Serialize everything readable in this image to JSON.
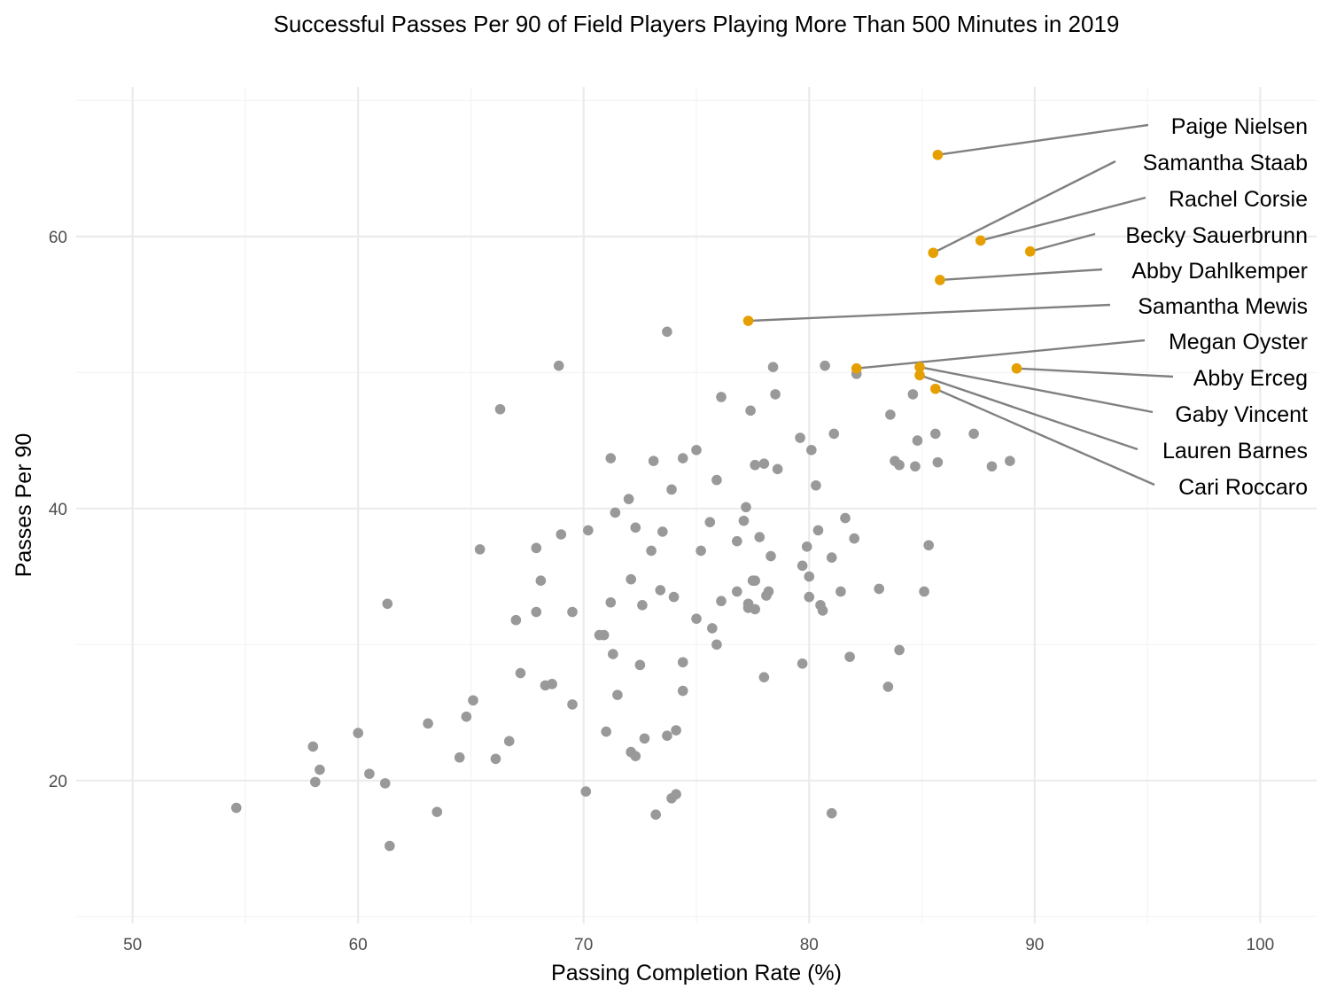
{
  "chart_data": {
    "type": "scatter",
    "title": "Successful Passes Per 90 of Field Players Playing More Than 500 Minutes in 2019",
    "xlabel": "Passing Completion Rate (%)",
    "ylabel": "Passes Per 90",
    "xlim": [
      47.5,
      102.5
    ],
    "ylim": [
      9.5,
      71
    ],
    "x_ticks": [
      50,
      60,
      70,
      80,
      90,
      100
    ],
    "y_ticks": [
      20,
      40,
      60
    ],
    "grid": true,
    "colors": {
      "base_points": "#999999",
      "highlight_points": "#E69F00",
      "leader_lines": "#808080"
    },
    "series": [
      {
        "points": [
          [
            54.6,
            18.0
          ],
          [
            58.0,
            22.5
          ],
          [
            58.1,
            19.9
          ],
          [
            58.3,
            20.8
          ],
          [
            60.0,
            23.5
          ],
          [
            60.5,
            20.5
          ],
          [
            61.2,
            19.8
          ],
          [
            61.3,
            33.0
          ],
          [
            61.4,
            15.2
          ],
          [
            63.1,
            24.2
          ],
          [
            63.5,
            17.7
          ],
          [
            64.5,
            21.7
          ],
          [
            64.8,
            24.7
          ],
          [
            65.1,
            25.9
          ],
          [
            65.4,
            37.0
          ],
          [
            66.1,
            21.6
          ],
          [
            66.3,
            47.3
          ],
          [
            66.7,
            22.9
          ],
          [
            67.0,
            31.8
          ],
          [
            67.2,
            27.9
          ],
          [
            67.9,
            37.1
          ],
          [
            67.9,
            32.4
          ],
          [
            68.1,
            34.7
          ],
          [
            68.3,
            27.0
          ],
          [
            68.6,
            27.1
          ],
          [
            68.9,
            50.5
          ],
          [
            69.0,
            38.1
          ],
          [
            69.5,
            32.4
          ],
          [
            69.5,
            25.6
          ],
          [
            70.1,
            19.2
          ],
          [
            70.2,
            38.4
          ],
          [
            70.7,
            30.7
          ],
          [
            70.9,
            30.7
          ],
          [
            71.0,
            23.6
          ],
          [
            71.2,
            33.1
          ],
          [
            71.2,
            43.7
          ],
          [
            71.3,
            29.3
          ],
          [
            71.4,
            39.7
          ],
          [
            71.5,
            26.3
          ],
          [
            72.0,
            40.7
          ],
          [
            72.1,
            22.1
          ],
          [
            72.1,
            34.8
          ],
          [
            72.3,
            38.6
          ],
          [
            72.3,
            21.8
          ],
          [
            72.5,
            28.5
          ],
          [
            72.6,
            32.9
          ],
          [
            72.7,
            23.1
          ],
          [
            73.0,
            36.9
          ],
          [
            73.1,
            43.5
          ],
          [
            73.2,
            17.5
          ],
          [
            73.4,
            34.0
          ],
          [
            73.5,
            38.3
          ],
          [
            73.7,
            53.0
          ],
          [
            73.7,
            23.3
          ],
          [
            73.9,
            41.4
          ],
          [
            73.9,
            18.7
          ],
          [
            74.0,
            33.5
          ],
          [
            74.1,
            23.7
          ],
          [
            74.1,
            19.0
          ],
          [
            74.4,
            43.7
          ],
          [
            74.4,
            28.7
          ],
          [
            74.4,
            26.6
          ],
          [
            75.0,
            44.3
          ],
          [
            75.0,
            31.9
          ],
          [
            75.2,
            36.9
          ],
          [
            75.6,
            39.0
          ],
          [
            75.7,
            31.2
          ],
          [
            75.9,
            30.0
          ],
          [
            75.9,
            42.1
          ],
          [
            76.1,
            48.2
          ],
          [
            76.1,
            33.2
          ],
          [
            76.8,
            37.6
          ],
          [
            76.8,
            33.9
          ],
          [
            77.1,
            39.1
          ],
          [
            77.2,
            40.1
          ],
          [
            77.3,
            33.0
          ],
          [
            77.3,
            32.7
          ],
          [
            77.4,
            47.2
          ],
          [
            77.5,
            34.7
          ],
          [
            77.6,
            32.6
          ],
          [
            77.6,
            43.2
          ],
          [
            77.6,
            34.7
          ],
          [
            77.8,
            37.9
          ],
          [
            78.0,
            43.3
          ],
          [
            78.0,
            27.6
          ],
          [
            78.1,
            33.6
          ],
          [
            78.2,
            33.9
          ],
          [
            78.3,
            36.5
          ],
          [
            78.4,
            50.4
          ],
          [
            78.5,
            48.4
          ],
          [
            78.6,
            42.9
          ],
          [
            79.6,
            45.2
          ],
          [
            79.7,
            28.6
          ],
          [
            79.7,
            35.8
          ],
          [
            79.9,
            37.2
          ],
          [
            80.0,
            33.5
          ],
          [
            80.0,
            35.0
          ],
          [
            80.1,
            44.3
          ],
          [
            80.3,
            41.7
          ],
          [
            80.4,
            38.4
          ],
          [
            80.5,
            32.9
          ],
          [
            80.6,
            32.5
          ],
          [
            80.7,
            50.5
          ],
          [
            81.0,
            36.4
          ],
          [
            81.0,
            17.6
          ],
          [
            81.1,
            45.5
          ],
          [
            81.4,
            33.9
          ],
          [
            81.6,
            39.3
          ],
          [
            81.8,
            29.1
          ],
          [
            82.0,
            37.8
          ],
          [
            82.1,
            49.9
          ],
          [
            83.1,
            34.1
          ],
          [
            83.5,
            26.9
          ],
          [
            83.6,
            46.9
          ],
          [
            83.8,
            43.5
          ],
          [
            84.0,
            43.2
          ],
          [
            84.0,
            29.6
          ],
          [
            84.6,
            48.4
          ],
          [
            84.7,
            43.1
          ],
          [
            84.8,
            45.0
          ],
          [
            85.1,
            33.9
          ],
          [
            85.3,
            37.3
          ],
          [
            85.6,
            45.5
          ],
          [
            85.7,
            43.4
          ],
          [
            87.3,
            45.5
          ],
          [
            88.1,
            43.1
          ],
          [
            88.9,
            43.5
          ]
        ]
      },
      {
        "points": [
          {
            "x": 85.7,
            "y": 66.0,
            "label": "Paige Nielsen"
          },
          {
            "x": 85.5,
            "y": 58.8,
            "label": "Samantha Staab"
          },
          {
            "x": 87.6,
            "y": 59.7,
            "label": "Rachel Corsie"
          },
          {
            "x": 89.8,
            "y": 58.9,
            "label": "Becky Sauerbrunn"
          },
          {
            "x": 85.8,
            "y": 56.8,
            "label": "Abby Dahlkemper"
          },
          {
            "x": 77.3,
            "y": 53.8,
            "label": "Samantha Mewis"
          },
          {
            "x": 82.1,
            "y": 50.3,
            "label": "Megan Oyster"
          },
          {
            "x": 89.2,
            "y": 50.3,
            "label": "Abby Erceg"
          },
          {
            "x": 84.9,
            "y": 50.4,
            "label": "Gaby Vincent"
          },
          {
            "x": 84.9,
            "y": 49.8,
            "label": "Lauren Barnes"
          },
          {
            "x": 85.6,
            "y": 48.8,
            "label": "Cari Roccaro"
          }
        ]
      }
    ]
  }
}
